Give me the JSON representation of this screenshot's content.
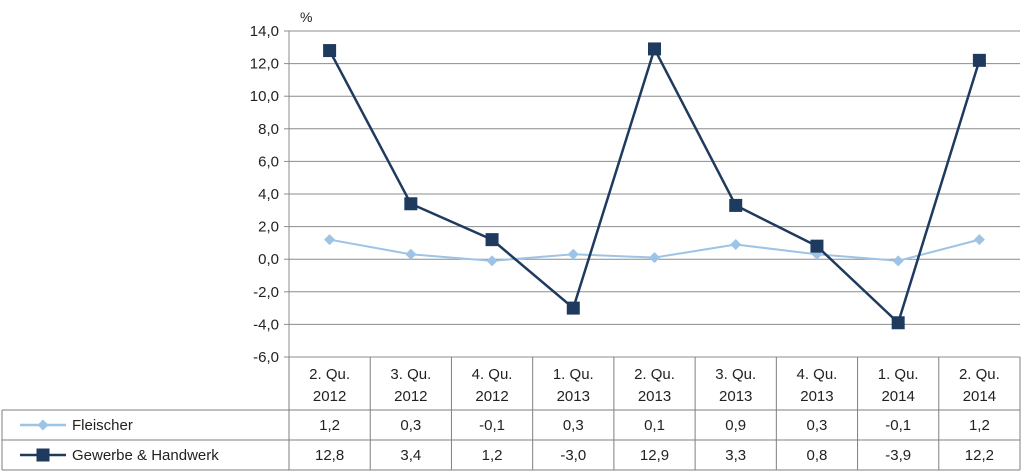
{
  "chart_data": {
    "type": "line",
    "unit_label": "%",
    "categories": [
      [
        "2. Qu.",
        "2012"
      ],
      [
        "3. Qu.",
        "2012"
      ],
      [
        "4. Qu.",
        "2012"
      ],
      [
        "1. Qu.",
        "2013"
      ],
      [
        "2. Qu.",
        "2013"
      ],
      [
        "3. Qu.",
        "2013"
      ],
      [
        "4. Qu.",
        "2013"
      ],
      [
        "1. Qu.",
        "2014"
      ],
      [
        "2. Qu.",
        "2014"
      ]
    ],
    "ylim": [
      -6,
      14
    ],
    "ytick_step": 2,
    "yticks": [
      "14,0",
      "12,0",
      "10,0",
      "8,0",
      "6,0",
      "4,0",
      "2,0",
      "0,0",
      "-2,0",
      "-4,0",
      "-6,0"
    ],
    "grid": "horizontal",
    "legend": "data-table",
    "series": [
      {
        "name": "Fleischer",
        "values": [
          1.2,
          0.3,
          -0.1,
          0.3,
          0.1,
          0.9,
          0.3,
          -0.1,
          1.2
        ],
        "labels": [
          "1,2",
          "0,3",
          "-0,1",
          "0,3",
          "0,1",
          "0,9",
          "0,3",
          "-0,1",
          "1,2"
        ],
        "color": "#9dc3e6",
        "marker": "diamond"
      },
      {
        "name": "Gewerbe & Handwerk",
        "values": [
          12.8,
          3.4,
          1.2,
          -3.0,
          12.9,
          3.3,
          0.8,
          -3.9,
          12.2
        ],
        "labels": [
          "12,8",
          "3,4",
          "1,2",
          "-3,0",
          "12,9",
          "3,3",
          "0,8",
          "-3,9",
          "12,2"
        ],
        "color": "#1f3a5f",
        "marker": "square"
      }
    ]
  }
}
